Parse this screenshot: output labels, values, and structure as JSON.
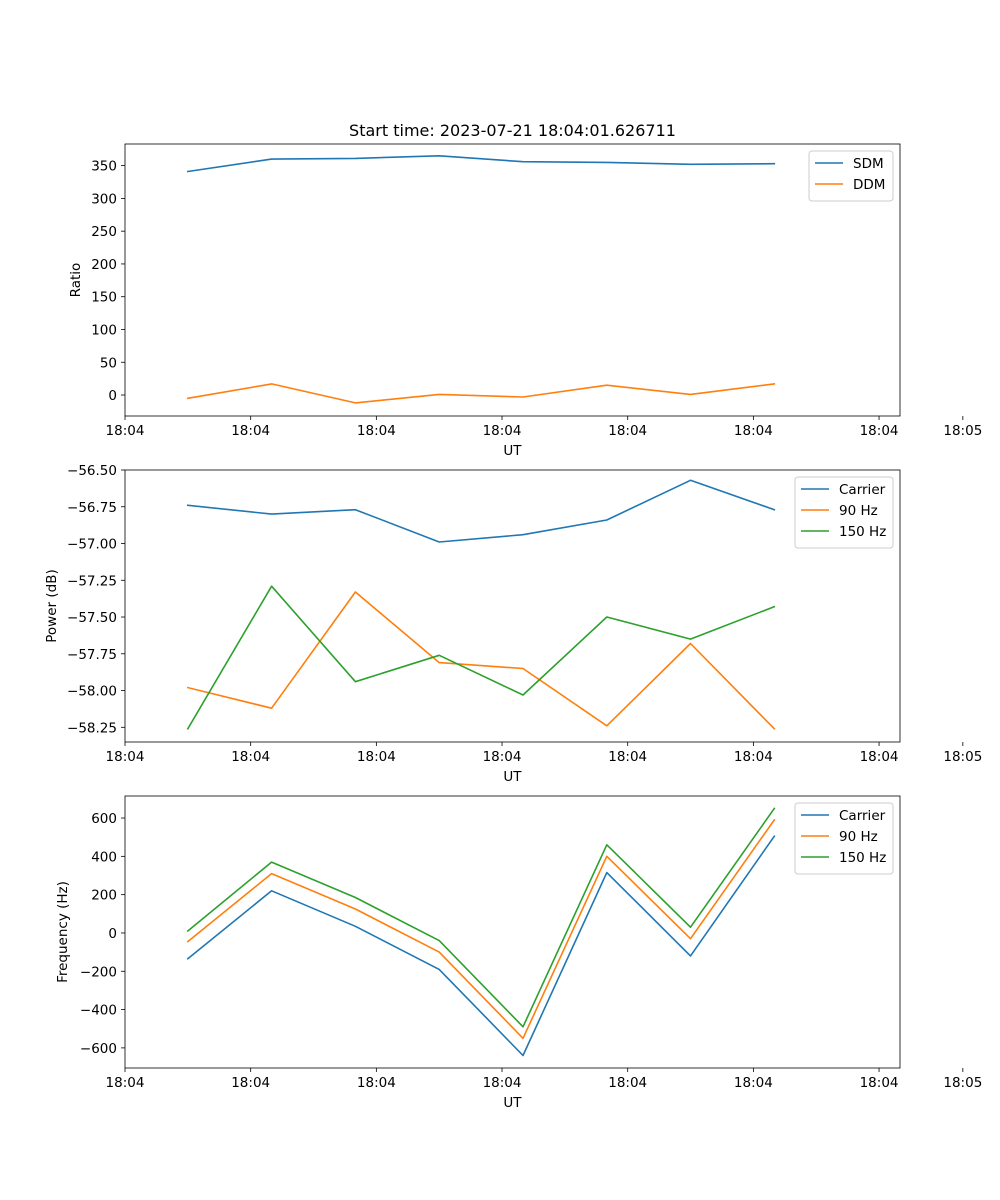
{
  "figure_title": "Start time: 2023-07-21 18:04:01.626711",
  "colors": {
    "blue": "#1f77b4",
    "orange": "#ff7f0e",
    "green": "#2ca02c"
  },
  "chart_data": [
    {
      "type": "line",
      "title": "Start time: 2023-07-21 18:04:01.626711",
      "xlabel": "UT",
      "ylabel": "Ratio",
      "x_index": [
        0,
        1,
        2,
        3,
        4,
        5,
        6,
        7
      ],
      "xlim": [
        -0.75,
        8.5
      ],
      "x_ticks": [
        -0.75,
        0.75,
        2.25,
        3.75,
        5.25,
        6.75,
        8.25,
        9.25
      ],
      "x_tick_labels": [
        "18:04",
        "18:04",
        "18:04",
        "18:04",
        "18:04",
        "18:04",
        "18:04",
        "18:05"
      ],
      "ylim": [
        -32,
        383
      ],
      "y_ticks": [
        0,
        50,
        100,
        150,
        200,
        250,
        300,
        350
      ],
      "y_tick_labels": [
        "0",
        "50",
        "100",
        "150",
        "200",
        "250",
        "300",
        "350"
      ],
      "legend_position": "top-right",
      "series": [
        {
          "name": "SDM",
          "color": "#1f77b4",
          "values": [
            341,
            360,
            361,
            365,
            356,
            355,
            352,
            353
          ]
        },
        {
          "name": "DDM",
          "color": "#ff7f0e",
          "values": [
            -5,
            17,
            -12,
            1,
            -3,
            15,
            1,
            17
          ]
        }
      ]
    },
    {
      "type": "line",
      "title": "",
      "xlabel": "UT",
      "ylabel": "Power (dB)",
      "x_index": [
        0,
        1,
        2,
        3,
        4,
        5,
        6,
        7
      ],
      "xlim": [
        -0.75,
        8.5
      ],
      "x_ticks": [
        -0.75,
        0.75,
        2.25,
        3.75,
        5.25,
        6.75,
        8.25,
        9.25
      ],
      "x_tick_labels": [
        "18:04",
        "18:04",
        "18:04",
        "18:04",
        "18:04",
        "18:04",
        "18:04",
        "18:05"
      ],
      "ylim": [
        -58.35,
        -56.5
      ],
      "y_ticks": [
        -58.25,
        -58.0,
        -57.75,
        -57.5,
        -57.25,
        -57.0,
        -56.75,
        -56.5
      ],
      "y_tick_labels": [
        "−58.25",
        "−58.00",
        "−57.75",
        "−57.50",
        "−57.25",
        "−57.00",
        "−56.75",
        "−56.50"
      ],
      "legend_position": "top-right",
      "series": [
        {
          "name": "Carrier",
          "color": "#1f77b4",
          "values": [
            -56.74,
            -56.8,
            -56.77,
            -56.99,
            -56.94,
            -56.84,
            -56.57,
            -56.77
          ]
        },
        {
          "name": "90 Hz",
          "color": "#ff7f0e",
          "values": [
            -57.98,
            -58.12,
            -57.33,
            -57.81,
            -57.85,
            -58.24,
            -57.68,
            -58.26
          ]
        },
        {
          "name": "150 Hz",
          "color": "#2ca02c",
          "values": [
            -58.26,
            -57.29,
            -57.94,
            -57.76,
            -58.03,
            -57.5,
            -57.65,
            -57.43
          ]
        }
      ]
    },
    {
      "type": "line",
      "title": "",
      "xlabel": "UT",
      "ylabel": "Frequency (Hz)",
      "x_index": [
        0,
        1,
        2,
        3,
        4,
        5,
        6,
        7
      ],
      "xlim": [
        -0.75,
        8.5
      ],
      "x_ticks": [
        -0.75,
        0.75,
        2.25,
        3.75,
        5.25,
        6.75,
        8.25,
        9.25
      ],
      "x_tick_labels": [
        "18:04",
        "18:04",
        "18:04",
        "18:04",
        "18:04",
        "18:04",
        "18:04",
        "18:05"
      ],
      "ylim": [
        -705,
        715
      ],
      "y_ticks": [
        -600,
        -400,
        -200,
        0,
        200,
        400,
        600
      ],
      "y_tick_labels": [
        "−600",
        "−400",
        "−200",
        "0",
        "200",
        "400",
        "600"
      ],
      "legend_position": "top-right",
      "series": [
        {
          "name": "Carrier",
          "color": "#1f77b4",
          "values": [
            -135,
            220,
            35,
            -190,
            -640,
            315,
            -120,
            505
          ]
        },
        {
          "name": "90 Hz",
          "color": "#ff7f0e",
          "values": [
            -45,
            310,
            125,
            -100,
            -550,
            400,
            -30,
            590
          ]
        },
        {
          "name": "150 Hz",
          "color": "#2ca02c",
          "values": [
            10,
            370,
            185,
            -40,
            -490,
            460,
            30,
            650
          ]
        }
      ]
    }
  ]
}
